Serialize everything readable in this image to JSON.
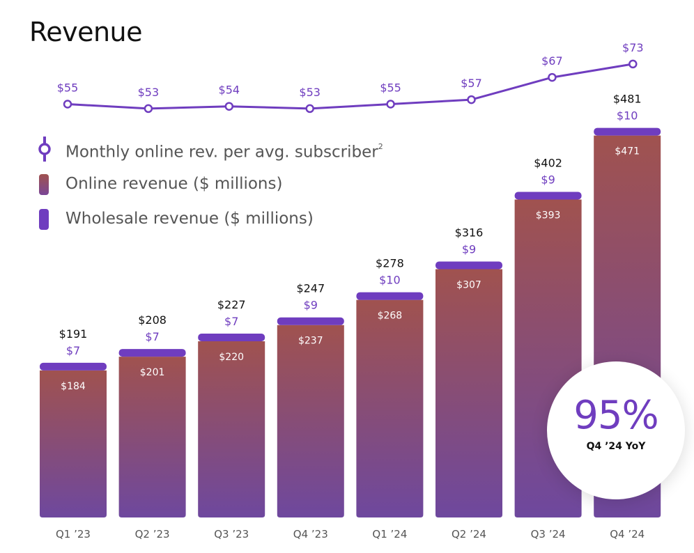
{
  "title": "Revenue",
  "legend": {
    "arpu": "Monthly online rev. per avg. subscriber",
    "arpu_footnote": "2",
    "online": "Online revenue ($ millions)",
    "wholesale": "Wholesale revenue ($ millions)"
  },
  "badge": {
    "value": "95%",
    "label": "Q4 ’24 YoY"
  },
  "colors": {
    "line": "#6f3dbf",
    "wholesale": "#6f3dbf",
    "online_top": "#a0524f",
    "online_bottom": "#6e489e",
    "total_label": "#111111",
    "online_label": "#ffffff",
    "axis_label": "#555555"
  },
  "chart_data": {
    "type": "bar",
    "stacked": true,
    "categories": [
      "Q1 ’23",
      "Q2 ’23",
      "Q3 ’23",
      "Q4 ’23",
      "Q1 ’24",
      "Q2 ’24",
      "Q3 ’24",
      "Q4 ’24"
    ],
    "series": [
      {
        "name": "Online revenue ($ millions)",
        "values": [
          184,
          201,
          220,
          237,
          268,
          307,
          393,
          471
        ],
        "labels": [
          "$184",
          "$201",
          "$220",
          "$237",
          "$268",
          "$307",
          "$393",
          "$471"
        ]
      },
      {
        "name": "Wholesale revenue ($ millions)",
        "values": [
          7,
          7,
          7,
          9,
          10,
          9,
          9,
          10
        ],
        "labels": [
          "$7",
          "$7",
          "$7",
          "$9",
          "$10",
          "$9",
          "$9",
          "$10"
        ]
      }
    ],
    "totals": [
      191,
      208,
      227,
      247,
      278,
      316,
      402,
      481
    ],
    "total_labels": [
      "$191",
      "$208",
      "$227",
      "$247",
      "$278",
      "$316",
      "$402",
      "$481"
    ],
    "line": {
      "name": "Monthly online rev. per avg. subscriber",
      "values": [
        55,
        53,
        54,
        53,
        55,
        57,
        67,
        73
      ],
      "labels": [
        "$55",
        "$53",
        "$54",
        "$53",
        "$55",
        "$57",
        "$67",
        "$73"
      ]
    }
  }
}
